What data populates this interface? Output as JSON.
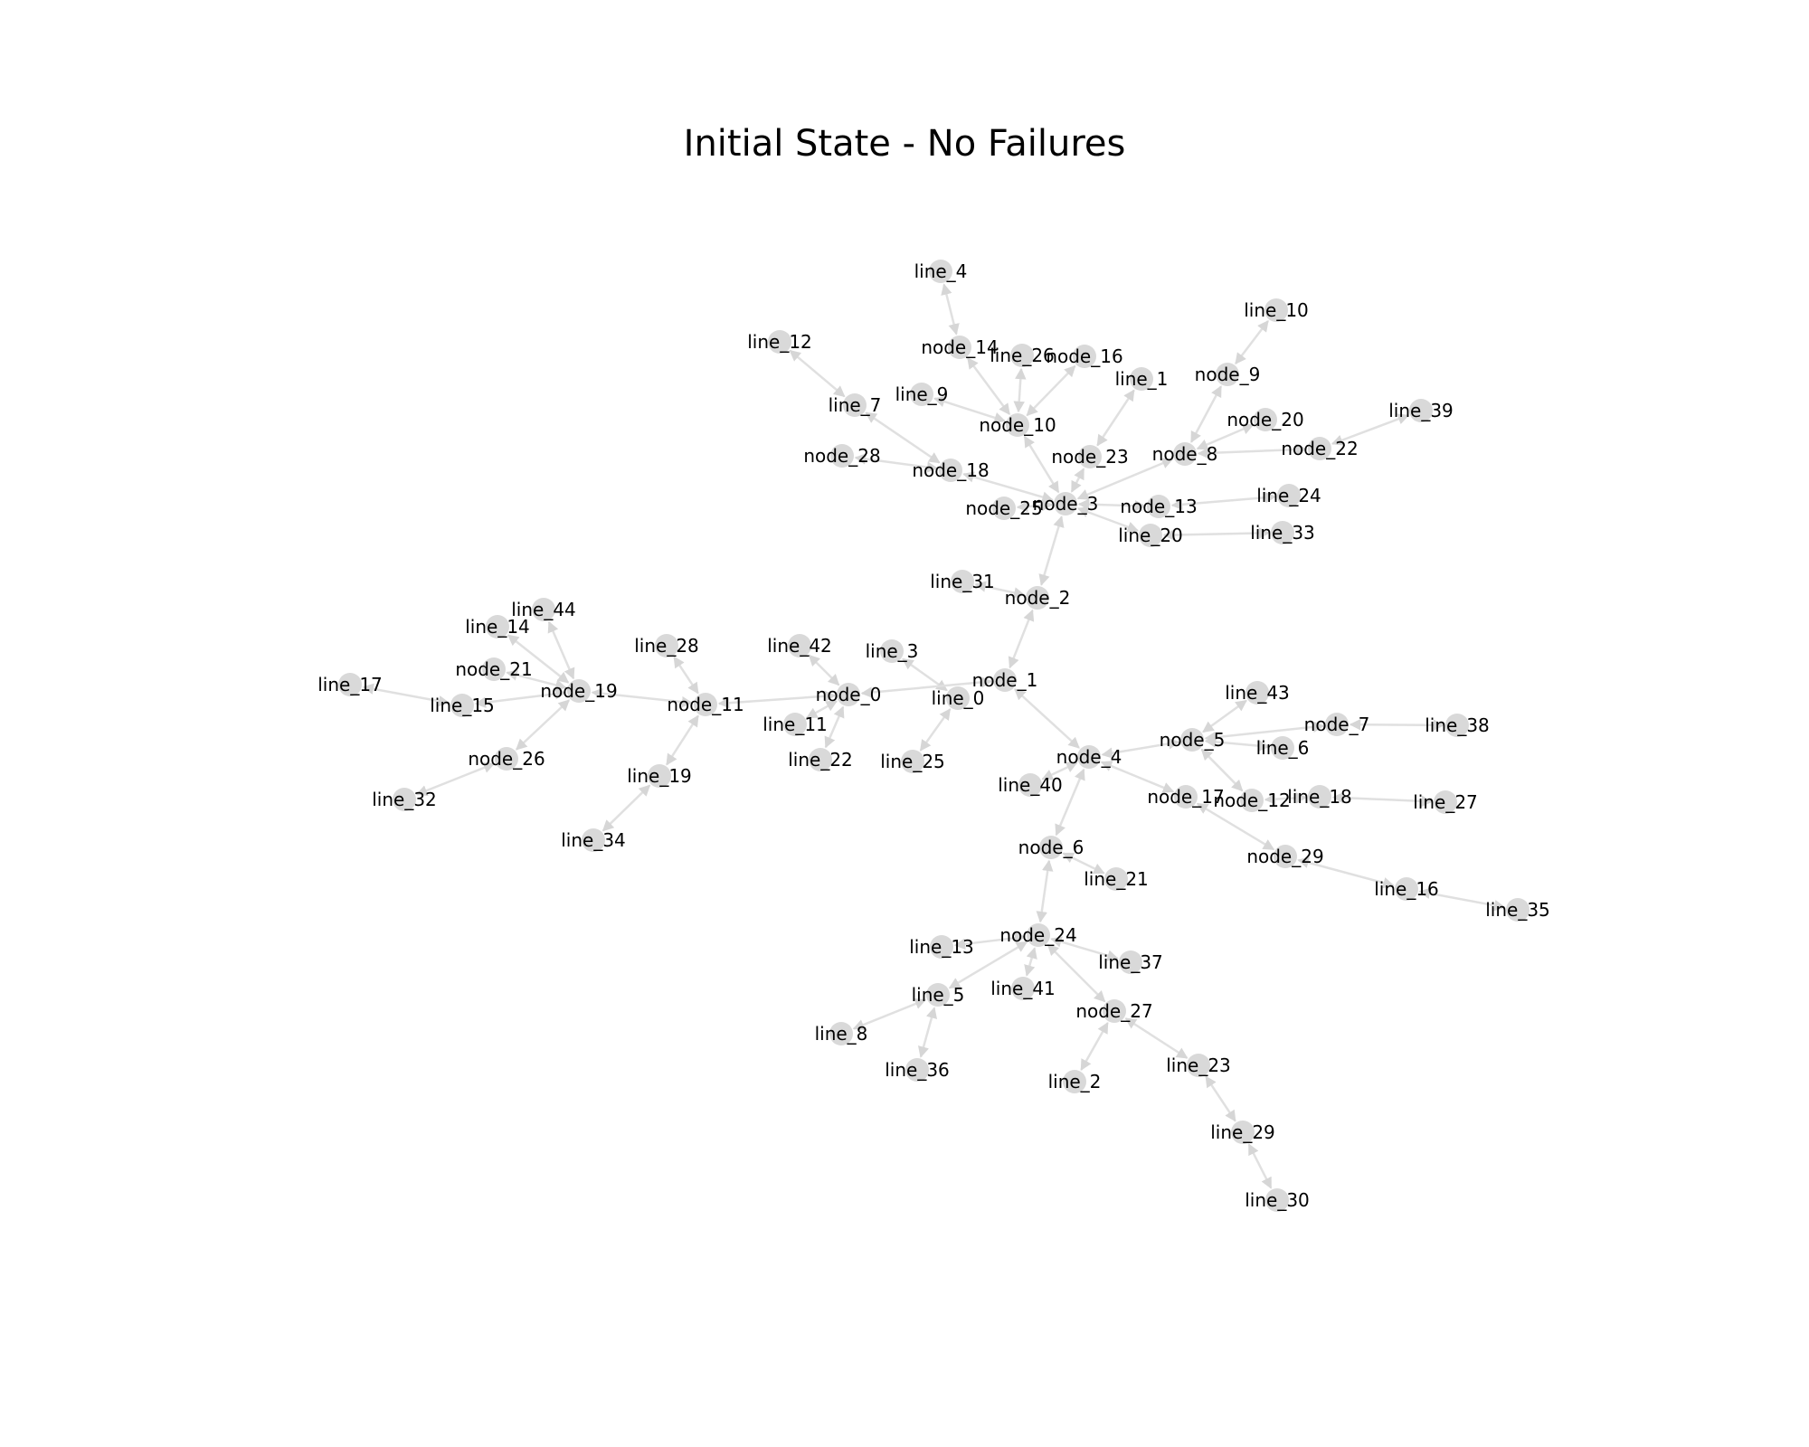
{
  "title": "Initial State - No Failures",
  "colors": {
    "node": "#d9d9d9",
    "edge": "#e0e0e0",
    "label": "#000000",
    "background": "#ffffff"
  },
  "nodes": [
    "node_0",
    "node_1",
    "node_2",
    "node_3",
    "node_4",
    "node_5",
    "node_6",
    "node_7",
    "node_8",
    "node_9",
    "node_10",
    "node_11",
    "node_12",
    "node_13",
    "node_14",
    "node_16",
    "node_17",
    "node_18",
    "node_19",
    "node_20",
    "node_21",
    "node_22",
    "node_23",
    "node_24",
    "node_25",
    "node_26",
    "node_27",
    "node_28",
    "node_29",
    "line_0",
    "line_1",
    "line_2",
    "line_3",
    "line_4",
    "line_5",
    "line_6",
    "line_7",
    "line_8",
    "line_9",
    "line_10",
    "line_11",
    "line_12",
    "line_13",
    "line_14",
    "line_15",
    "line_16",
    "line_17",
    "line_18",
    "line_19",
    "line_20",
    "line_21",
    "line_22",
    "line_23",
    "line_24",
    "line_25",
    "line_26",
    "line_27",
    "line_28",
    "line_29",
    "line_30",
    "line_31",
    "line_32",
    "line_33",
    "line_34",
    "line_35",
    "line_36",
    "line_37",
    "line_38",
    "line_39",
    "line_40",
    "line_41",
    "line_42",
    "line_43",
    "line_44"
  ],
  "edges": [
    [
      "line_4",
      "node_14"
    ],
    [
      "node_14",
      "node_10"
    ],
    [
      "line_26",
      "node_10"
    ],
    [
      "node_16",
      "node_10"
    ],
    [
      "line_9",
      "node_10"
    ],
    [
      "node_10",
      "node_3"
    ],
    [
      "line_12",
      "line_7"
    ],
    [
      "line_7",
      "node_18"
    ],
    [
      "node_28",
      "node_18"
    ],
    [
      "node_18",
      "node_3"
    ],
    [
      "line_1",
      "node_23"
    ],
    [
      "node_23",
      "node_3"
    ],
    [
      "node_3",
      "node_8"
    ],
    [
      "node_9",
      "node_8"
    ],
    [
      "line_10",
      "node_9"
    ],
    [
      "node_20",
      "node_8"
    ],
    [
      "node_8",
      "node_22"
    ],
    [
      "node_22",
      "line_39"
    ],
    [
      "node_25",
      "node_3"
    ],
    [
      "node_13",
      "node_3"
    ],
    [
      "node_13",
      "line_24"
    ],
    [
      "line_20",
      "node_3"
    ],
    [
      "line_20",
      "line_33"
    ],
    [
      "node_3",
      "node_2"
    ],
    [
      "line_31",
      "node_2"
    ],
    [
      "node_2",
      "node_1"
    ],
    [
      "line_3",
      "line_0"
    ],
    [
      "node_0",
      "node_1"
    ],
    [
      "line_25",
      "line_0"
    ],
    [
      "node_1",
      "node_4"
    ],
    [
      "line_42",
      "node_0"
    ],
    [
      "line_11",
      "node_0"
    ],
    [
      "line_22",
      "node_0"
    ],
    [
      "node_11",
      "node_0"
    ],
    [
      "line_28",
      "node_11"
    ],
    [
      "node_11",
      "line_19"
    ],
    [
      "line_19",
      "line_34"
    ],
    [
      "node_19",
      "node_11"
    ],
    [
      "line_44",
      "node_19"
    ],
    [
      "line_14",
      "node_19"
    ],
    [
      "node_21",
      "node_19"
    ],
    [
      "line_15",
      "node_19"
    ],
    [
      "line_17",
      "line_15"
    ],
    [
      "node_19",
      "node_26"
    ],
    [
      "node_26",
      "line_32"
    ],
    [
      "node_4",
      "node_5"
    ],
    [
      "line_43",
      "node_5"
    ],
    [
      "node_5",
      "line_6"
    ],
    [
      "node_5",
      "node_7"
    ],
    [
      "node_7",
      "line_38"
    ],
    [
      "node_5",
      "node_12"
    ],
    [
      "node_12",
      "line_18"
    ],
    [
      "line_18",
      "line_27"
    ],
    [
      "node_4",
      "node_17"
    ],
    [
      "node_17",
      "node_29"
    ],
    [
      "node_29",
      "line_16"
    ],
    [
      "line_16",
      "line_35"
    ],
    [
      "line_40",
      "node_4"
    ],
    [
      "node_4",
      "node_6"
    ],
    [
      "node_6",
      "line_21"
    ],
    [
      "node_6",
      "node_24"
    ],
    [
      "line_13",
      "node_24"
    ],
    [
      "node_24",
      "line_5"
    ],
    [
      "line_5",
      "line_8"
    ],
    [
      "line_5",
      "line_36"
    ],
    [
      "line_41",
      "node_24"
    ],
    [
      "node_24",
      "line_37"
    ],
    [
      "node_24",
      "node_27"
    ],
    [
      "node_27",
      "line_2"
    ],
    [
      "node_27",
      "line_23"
    ],
    [
      "line_23",
      "line_29"
    ],
    [
      "line_29",
      "line_30"
    ]
  ]
}
